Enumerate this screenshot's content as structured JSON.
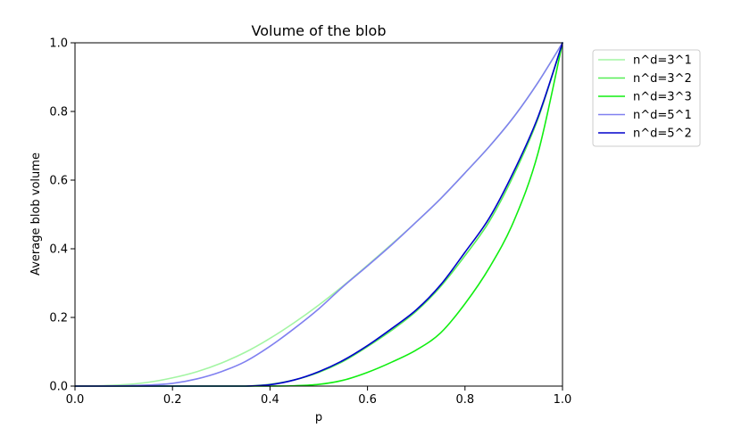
{
  "chart_data": {
    "type": "line",
    "title": "Volume of the blob",
    "xlabel": "p",
    "ylabel": "Average blob volume",
    "xlim": [
      0.0,
      1.0
    ],
    "ylim": [
      0.0,
      1.0
    ],
    "xticks": [
      "0.0",
      "0.2",
      "0.4",
      "0.6",
      "0.8",
      "1.0"
    ],
    "yticks": [
      "0.0",
      "0.2",
      "0.4",
      "0.6",
      "0.8",
      "1.0"
    ],
    "grid": false,
    "legend_position": "outside-top-right",
    "x": [
      0.0,
      0.05,
      0.1,
      0.15,
      0.2,
      0.25,
      0.3,
      0.35,
      0.4,
      0.45,
      0.5,
      0.55,
      0.6,
      0.65,
      0.7,
      0.75,
      0.8,
      0.85,
      0.9,
      0.95,
      1.0
    ],
    "series": [
      {
        "name": "n^d=3^1",
        "color": "#a3f5a3",
        "values": [
          0.0,
          0.001,
          0.004,
          0.011,
          0.024,
          0.042,
          0.067,
          0.099,
          0.139,
          0.185,
          0.236,
          0.292,
          0.352,
          0.414,
          0.478,
          0.546,
          0.621,
          0.698,
          0.784,
          0.885,
          1.0
        ]
      },
      {
        "name": "n^d=3^2",
        "color": "#55ee55",
        "values": [
          0.0,
          0.0,
          0.0,
          0.0,
          0.0,
          0.0,
          0.0,
          0.0,
          0.005,
          0.018,
          0.04,
          0.072,
          0.115,
          0.163,
          0.218,
          0.29,
          0.38,
          0.48,
          0.615,
          0.78,
          1.0
        ]
      },
      {
        "name": "n^d=3^3",
        "color": "#11ee11",
        "values": [
          0.0,
          0.0,
          0.0,
          0.0,
          0.0,
          0.0,
          0.0,
          0.0,
          0.0,
          0.001,
          0.005,
          0.017,
          0.04,
          0.07,
          0.105,
          0.155,
          0.24,
          0.345,
          0.48,
          0.68,
          1.0
        ]
      },
      {
        "name": "n^d=5^1",
        "color": "#8080f0",
        "values": [
          0.0,
          0.0,
          0.001,
          0.003,
          0.008,
          0.021,
          0.042,
          0.072,
          0.116,
          0.168,
          0.225,
          0.29,
          0.35,
          0.412,
          0.478,
          0.546,
          0.621,
          0.698,
          0.784,
          0.885,
          1.0
        ]
      },
      {
        "name": "n^d=5^2",
        "color": "#0000cc",
        "values": [
          0.0,
          0.0,
          0.0,
          0.0,
          0.0,
          0.0,
          0.0,
          0.0,
          0.004,
          0.018,
          0.042,
          0.075,
          0.118,
          0.168,
          0.222,
          0.295,
          0.39,
          0.49,
          0.625,
          0.785,
          1.0
        ]
      }
    ]
  }
}
